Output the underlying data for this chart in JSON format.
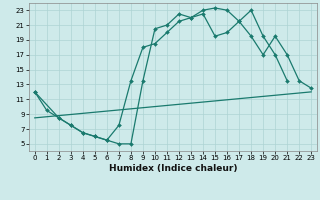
{
  "xlabel": "Humidex (Indice chaleur)",
  "bg_color": "#ceeaea",
  "grid_color": "#add4d4",
  "line_color": "#1a7a6e",
  "xlim": [
    -0.5,
    23.5
  ],
  "ylim": [
    4,
    24
  ],
  "yticks": [
    5,
    7,
    9,
    11,
    13,
    15,
    17,
    19,
    21,
    23
  ],
  "xticks": [
    0,
    1,
    2,
    3,
    4,
    5,
    6,
    7,
    8,
    9,
    10,
    11,
    12,
    13,
    14,
    15,
    16,
    17,
    18,
    19,
    20,
    21,
    22,
    23
  ],
  "line1_x": [
    0,
    1,
    2,
    3,
    4,
    5,
    6,
    7,
    8,
    9,
    10,
    11,
    12,
    13,
    14,
    15,
    16,
    17,
    18,
    19,
    20,
    21
  ],
  "line1_y": [
    12,
    9.5,
    8.5,
    7.5,
    6.5,
    6.0,
    5.5,
    5.0,
    5.0,
    13.5,
    20.5,
    21.0,
    22.5,
    22.0,
    23.0,
    23.3,
    23.0,
    21.5,
    23.0,
    19.5,
    17.0,
    13.5
  ],
  "line2_x": [
    0,
    2,
    3,
    4,
    5,
    6,
    7,
    8,
    9,
    10,
    11,
    12,
    13,
    14,
    15,
    16,
    17,
    18,
    19,
    20,
    21,
    22,
    23
  ],
  "line2_y": [
    12,
    8.5,
    7.5,
    6.5,
    6.0,
    5.5,
    7.5,
    13.5,
    18.0,
    18.5,
    20.0,
    21.5,
    22.0,
    22.5,
    19.5,
    20.0,
    21.5,
    19.5,
    17.0,
    19.5,
    17.0,
    13.5,
    12.5
  ],
  "line3_x": [
    0,
    23
  ],
  "line3_y": [
    8.5,
    12.0
  ],
  "markersize": 2.0,
  "linewidth": 0.9,
  "xlabel_fontsize": 6.5,
  "tick_fontsize": 5.0
}
